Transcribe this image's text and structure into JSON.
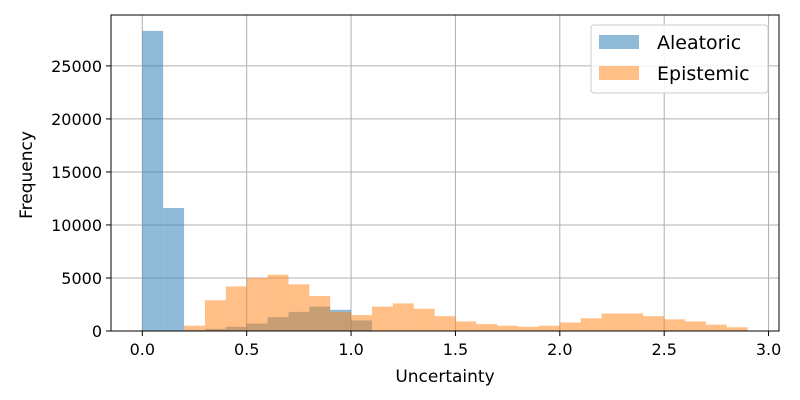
{
  "chart_data": {
    "type": "histogram",
    "xlabel": "Uncertainty",
    "ylabel": "Frequency",
    "xlim": [
      -0.15,
      3.05
    ],
    "ylim": [
      0,
      29800
    ],
    "grid": true,
    "legend_position": "top-right",
    "x_ticks": [
      0.0,
      0.5,
      1.0,
      1.5,
      2.0,
      2.5,
      3.0
    ],
    "x_tick_labels": [
      "0.0",
      "0.5",
      "1.0",
      "1.5",
      "2.0",
      "2.5",
      "3.0"
    ],
    "y_ticks": [
      0,
      5000,
      10000,
      15000,
      20000,
      25000
    ],
    "y_tick_labels": [
      "0",
      "5000",
      "10000",
      "15000",
      "20000",
      "25000"
    ],
    "series": [
      {
        "name": "Aleatoric",
        "color": "#1f77b4",
        "opacity": 0.5,
        "bin_edges": [
          0.0,
          0.1,
          0.2,
          0.3,
          0.4,
          0.5,
          0.6,
          0.7,
          0.8,
          0.9,
          1.0,
          1.1
        ],
        "counts": [
          28300,
          11600,
          80,
          200,
          400,
          700,
          1300,
          1800,
          2300,
          2000,
          1000
        ]
      },
      {
        "name": "Epistemic",
        "color": "#ff7f0e",
        "opacity": 0.5,
        "bin_edges": [
          0.2,
          0.3,
          0.4,
          0.5,
          0.6,
          0.7,
          0.8,
          0.9,
          1.0,
          1.1,
          1.2,
          1.3,
          1.4,
          1.5,
          1.6,
          1.7,
          1.8,
          1.9,
          2.0,
          2.1,
          2.2,
          2.3,
          2.4,
          2.5,
          2.6,
          2.7,
          2.8,
          2.9
        ],
        "counts": [
          500,
          2900,
          4200,
          5000,
          5300,
          4400,
          3300,
          1800,
          1500,
          2300,
          2600,
          2100,
          1400,
          900,
          650,
          500,
          400,
          500,
          800,
          1200,
          1650,
          1650,
          1400,
          1100,
          900,
          600,
          350
        ]
      }
    ]
  }
}
